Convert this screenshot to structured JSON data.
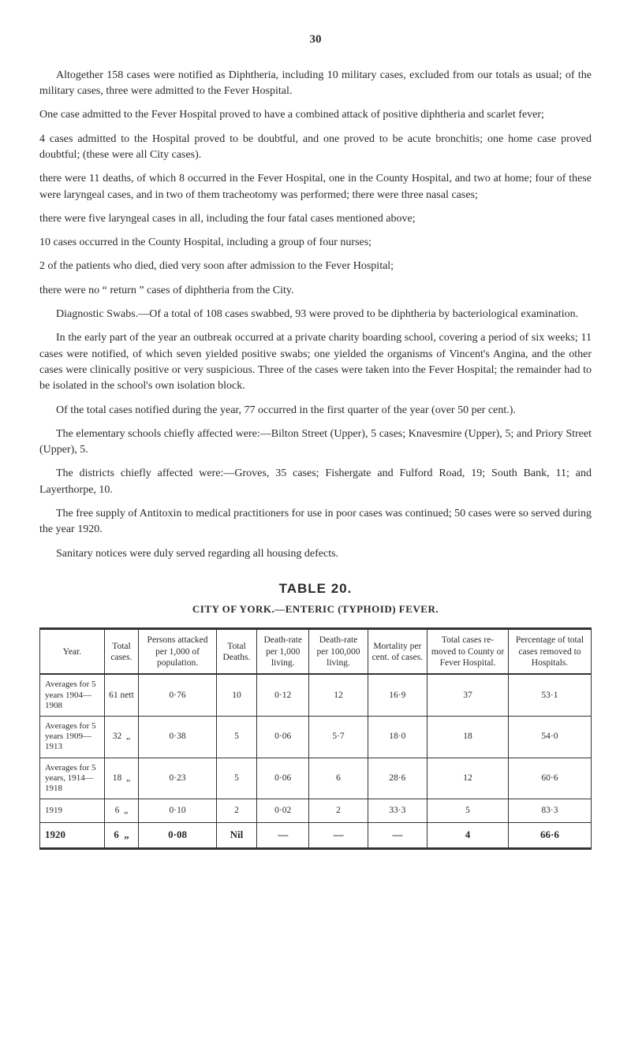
{
  "page_number": "30",
  "paragraphs": {
    "p1": "Altogether 158 cases were notified as Diphtheria, including 10 military cases, excluded from our totals as usual; of the military cases, three were admitted to the Fever Hospital.",
    "p2": "One case admitted to the Fever Hospital proved to have a combined attack of positive diphtheria and scarlet fever;",
    "p3": "4 cases admitted to the Hospital proved to be doubtful, and one proved to be acute bronchitis; one home case proved doubtful; (these were all City cases).",
    "p4": "there were 11 deaths, of which 8 occurred in the Fever Hospital, one in the County Hospital, and two at home; four of these were laryngeal cases, and in two of them tracheotomy was performed; there were three nasal cases;",
    "p5": "there were five laryngeal cases in all, including the four fatal cases mentioned above;",
    "p6": "10 cases occurred in the County Hospital, including a group of four nurses;",
    "p7": "2 of the patients who died, died very soon after admission to the Fever Hospital;",
    "p8": "there were no “ return ” cases of diphtheria from the City.",
    "p9": "Diagnostic Swabs.—Of a total of 108 cases swabbed, 93 were proved to be diphtheria by bacteriological examination.",
    "p10": "In the early part of the year an outbreak occurred at a private charity boarding school, covering a period of six weeks; 11 cases were notified, of which seven yielded positive swabs; one yielded the organisms of Vincent's Angina, and the other cases were clinically positive or very suspicious. Three of the cases were taken into the Fever Hospital; the remainder had to be isolated in the school's own isolation block.",
    "p11": "Of the total cases notified during the year, 77 occurred in the first quarter of the year (over 50 per cent.).",
    "p12": "The elementary schools chiefly affected were:—Bilton Street (Upper), 5 cases; Knavesmire (Upper), 5; and Priory Street (Upper), 5.",
    "p13": "The districts chiefly affected were:—Groves, 35 cases; Fishergate and Fulford Road, 19; South Bank, 11; and Layerthorpe, 10.",
    "p14": "The free supply of Antitoxin to medical practitioners for use in poor cases was continued; 50 cases were so served during the year 1920.",
    "p15": "Sanitary notices were duly served regarding all housing defects."
  },
  "table_section": {
    "title": "TABLE 20.",
    "subtitle": "CITY OF YORK.—ENTERIC (TYPHOID) FEVER."
  },
  "table": {
    "columns": [
      "Year.",
      "Total cases.",
      "Persons attacked per 1,000 of population.",
      "Total Deaths.",
      "Death-rate per 1,000 living.",
      "Death-rate per 100,000 living.",
      "Mortality per cent. of cases.",
      "Total cases re-moved to County or Fever Hospital.",
      "Percentage of total cases removed to Hospitals."
    ],
    "rows": [
      {
        "label": "Averages for 5 years 1904—1908",
        "total_cases": "61 nett",
        "persons_attacked": "0·76",
        "total_deaths": "10",
        "death_rate_1000": "0·12",
        "death_rate_100000": "12",
        "mortality_pct": "16·9",
        "cases_removed": "37",
        "pct_removed": "53·1"
      },
      {
        "label": "Averages for 5 years 1909—1913",
        "total_cases": "32  „",
        "persons_attacked": "0·38",
        "total_deaths": "5",
        "death_rate_1000": "0·06",
        "death_rate_100000": "5·7",
        "mortality_pct": "18·0",
        "cases_removed": "18",
        "pct_removed": "54·0"
      },
      {
        "label": "Averages for 5 years, 1914—1918",
        "total_cases": "18  „",
        "persons_attacked": "0·23",
        "total_deaths": "5",
        "death_rate_1000": "0·06",
        "death_rate_100000": "6",
        "mortality_pct": "28·6",
        "cases_removed": "12",
        "pct_removed": "60·6"
      },
      {
        "label": "1919",
        "total_cases": "6  „",
        "persons_attacked": "0·10",
        "total_deaths": "2",
        "death_rate_1000": "0·02",
        "death_rate_100000": "2",
        "mortality_pct": "33·3",
        "cases_removed": "5",
        "pct_removed": "83·3"
      },
      {
        "label": "1920",
        "total_cases": "6  „",
        "persons_attacked": "0·08",
        "total_deaths": "Nil",
        "death_rate_1000": "—",
        "death_rate_100000": "—",
        "mortality_pct": "—",
        "cases_removed": "4",
        "pct_removed": "66·6"
      }
    ]
  },
  "colors": {
    "text": "#2a2a2a",
    "background": "#ffffff",
    "border": "#333333"
  }
}
